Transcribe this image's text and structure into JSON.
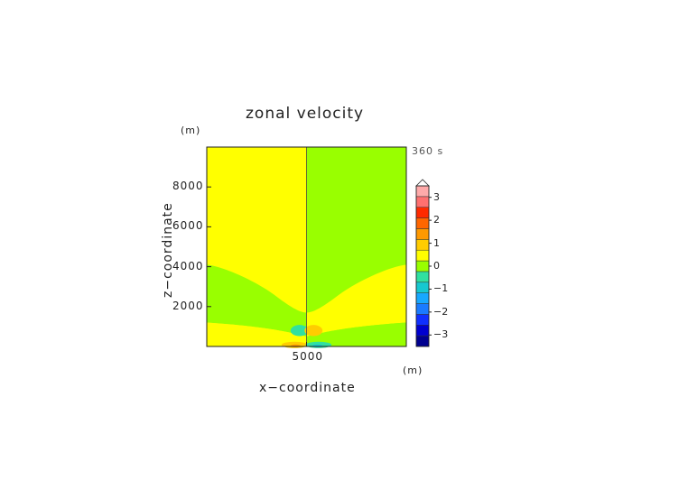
{
  "chart_data": {
    "type": "heatmap",
    "title": "zonal velocity",
    "xlabel": "x−coordinate",
    "ylabel": "z−coordinate",
    "x_unit": "(m)",
    "y_unit": "(m)",
    "time_label": "360 s",
    "xlim": [
      0,
      10000
    ],
    "ylim": [
      0,
      10000
    ],
    "x_ticks": [
      5000
    ],
    "x_tick_labels": [
      "5000"
    ],
    "y_ticks": [
      2000,
      4000,
      6000,
      8000
    ],
    "y_tick_labels": [
      "2000",
      "4000",
      "6000",
      "8000"
    ],
    "colorbar": {
      "levels": [
        -3.5,
        -3.0,
        -2.5,
        -2.0,
        -1.5,
        -1.0,
        -0.5,
        0.0,
        0.5,
        1.0,
        1.5,
        2.0,
        2.5,
        3.0,
        3.5
      ],
      "colors": [
        "#000090",
        "#0000d0",
        "#1030ff",
        "#1a7bff",
        "#17a8ff",
        "#16c8d0",
        "#30e0a0",
        "#99ff00",
        "#ffff00",
        "#ffcc00",
        "#ff9900",
        "#ff6600",
        "#ff2a00",
        "#ff7070",
        "#ffaaaa"
      ],
      "tick_labels": [
        "3",
        "2",
        "1",
        "0",
        "−1",
        "−2",
        "−3"
      ],
      "tick_values": [
        3,
        2,
        1,
        0,
        -1,
        -2,
        -3
      ],
      "extend": "max"
    },
    "background": {
      "left_half_value": 0.25,
      "right_half_value": -0.25,
      "left_color": "#ffff00",
      "right_color": "#99ff00"
    },
    "regions": [
      {
        "name": "left-lower-band",
        "value": -0.25,
        "color": "#99ff00"
      },
      {
        "name": "right-lower-band",
        "value": 0.25,
        "color": "#ffff00"
      },
      {
        "name": "left-upper-wedge",
        "value": 0.25,
        "color": "#ffff00"
      },
      {
        "name": "right-upper-wedge",
        "value": -0.25,
        "color": "#99ff00"
      },
      {
        "name": "surface-left",
        "value": 0.25,
        "color": "#ffff00"
      },
      {
        "name": "surface-right",
        "value": -0.25,
        "color": "#99ff00"
      },
      {
        "name": "cyan-cell",
        "value": -0.75,
        "color": "#30e0a0",
        "x": 4650,
        "z": 800
      },
      {
        "name": "orange-cell",
        "value": 0.75,
        "color": "#ffcc00",
        "x": 5350,
        "z": 800
      },
      {
        "name": "orange-surface-cell",
        "value": 0.75,
        "color": "#ffcc00",
        "x": 4550,
        "z": 80
      },
      {
        "name": "cyan-surface-cell",
        "value": -0.75,
        "color": "#30e0a0",
        "x": 5450,
        "z": 80
      },
      {
        "name": "red-surface-core",
        "value": 1.25,
        "color": "#ff9900",
        "x": 4550,
        "z": 40
      },
      {
        "name": "blue-surface-core",
        "value": -1.25,
        "color": "#16c8d0",
        "x": 5450,
        "z": 40
      }
    ]
  }
}
